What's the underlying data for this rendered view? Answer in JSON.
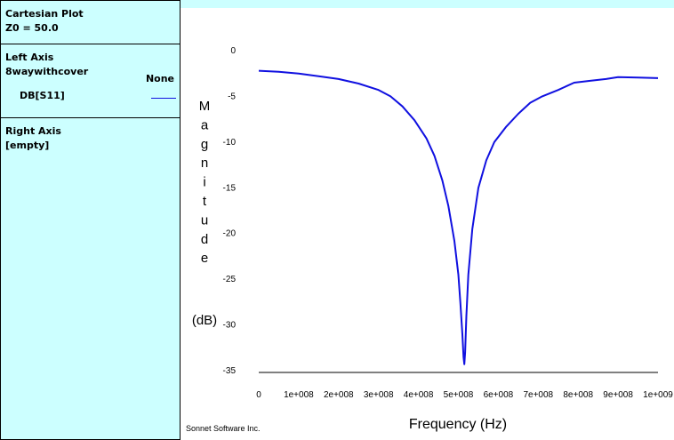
{
  "sidebar": {
    "title": "Cartesian Plot",
    "impedance": "Z0 = 50.0",
    "left_axis": {
      "heading": "Left Axis",
      "project": "8waywithcover",
      "none_label": "None",
      "trace": "DB[S11]",
      "trace_color": "#1010e0"
    },
    "right_axis": {
      "heading": "Right Axis",
      "value": "[empty]"
    }
  },
  "credit": "Sonnet Software Inc.",
  "chart_data": {
    "type": "line",
    "xlabel": "Frequency (Hz)",
    "ylabel_letters": [
      "M",
      "a",
      "g",
      "n",
      "i",
      "t",
      "u",
      "d",
      "e"
    ],
    "ylabel_unit": "(dB)",
    "xlim": [
      0,
      1000000000
    ],
    "ylim": [
      -35,
      0
    ],
    "x_ticks": [
      0,
      100000000,
      200000000,
      300000000,
      400000000,
      500000000,
      600000000,
      700000000,
      800000000,
      900000000,
      1000000000
    ],
    "x_tick_labels": [
      "0",
      "1e+008",
      "2e+008",
      "3e+008",
      "4e+008",
      "5e+008",
      "6e+008",
      "7e+008",
      "8e+008",
      "9e+008",
      "1e+009"
    ],
    "y_ticks": [
      0,
      -5,
      -10,
      -15,
      -20,
      -25,
      -30,
      -35
    ],
    "y_tick_labels": [
      "0",
      "-5",
      "-10",
      "-15",
      "-20",
      "-25",
      "-30",
      "-35"
    ],
    "grid": false,
    "series": [
      {
        "color": "#1010e0",
        "x": [
          0,
          50000000,
          100000000,
          150000000,
          200000000,
          250000000,
          300000000,
          330000000,
          360000000,
          390000000,
          420000000,
          440000000,
          460000000,
          475000000,
          490000000,
          500000000,
          505000000,
          510000000,
          513000000,
          515000000,
          517000000,
          520000000,
          525000000,
          535000000,
          550000000,
          570000000,
          590000000,
          620000000,
          650000000,
          680000000,
          710000000,
          750000000,
          790000000,
          830000000,
          870000000,
          900000000,
          950000000,
          1000000000
        ],
        "y": [
          -2.2,
          -2.3,
          -2.5,
          -2.8,
          -3.1,
          -3.6,
          -4.3,
          -5.0,
          -6.1,
          -7.6,
          -9.6,
          -11.5,
          -14.2,
          -17.0,
          -20.8,
          -24.5,
          -27.5,
          -31.0,
          -33.5,
          -34.3,
          -33.0,
          -29.0,
          -24.5,
          -19.5,
          -15.0,
          -12.0,
          -10.0,
          -8.3,
          -6.9,
          -5.7,
          -5.0,
          -4.3,
          -3.5,
          -3.3,
          -3.1,
          -2.9,
          -2.95,
          -3.0
        ]
      }
    ]
  }
}
